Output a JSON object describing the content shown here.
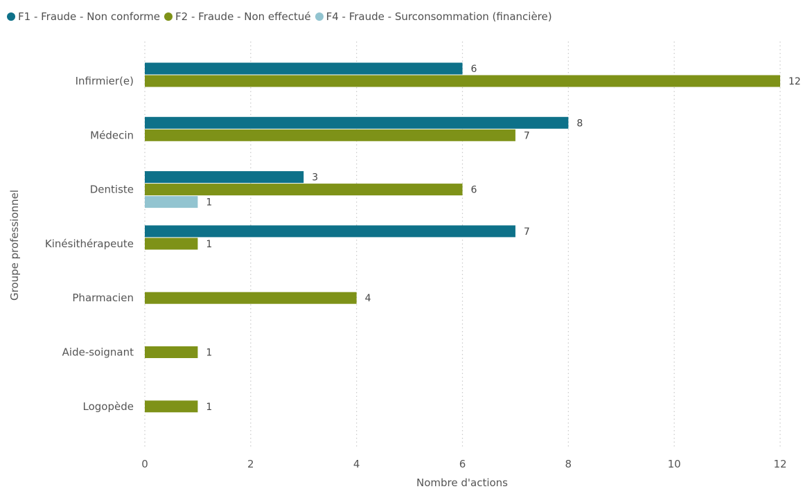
{
  "chart_data": {
    "type": "bar",
    "orientation": "horizontal",
    "categories": [
      "Infirmier(e)",
      "Médecin",
      "Dentiste",
      "Kinésithérapeute",
      "Pharmacien",
      "Aide-soignant",
      "Logopède"
    ],
    "series": [
      {
        "name": "F1 - Fraude - Non conforme",
        "color": "#0e7189",
        "values": [
          6,
          8,
          3,
          7,
          null,
          null,
          null
        ]
      },
      {
        "name": "F2 - Fraude - Non effectué",
        "color": "#7e9218",
        "values": [
          12,
          7,
          6,
          1,
          4,
          1,
          1
        ]
      },
      {
        "name": "F4 - Fraude - Surconsommation (financière)",
        "color": "#92c4d0",
        "values": [
          null,
          null,
          1,
          null,
          null,
          null,
          null
        ]
      }
    ],
    "xlabel": "Nombre d'actions",
    "ylabel": "Groupe professionnel",
    "xlim": [
      0,
      12
    ],
    "xticks": [
      "0",
      "2",
      "4",
      "6",
      "8",
      "10",
      "12"
    ],
    "grid": "vertical-dotted",
    "legend_position": "top-left",
    "data_labels": true
  }
}
